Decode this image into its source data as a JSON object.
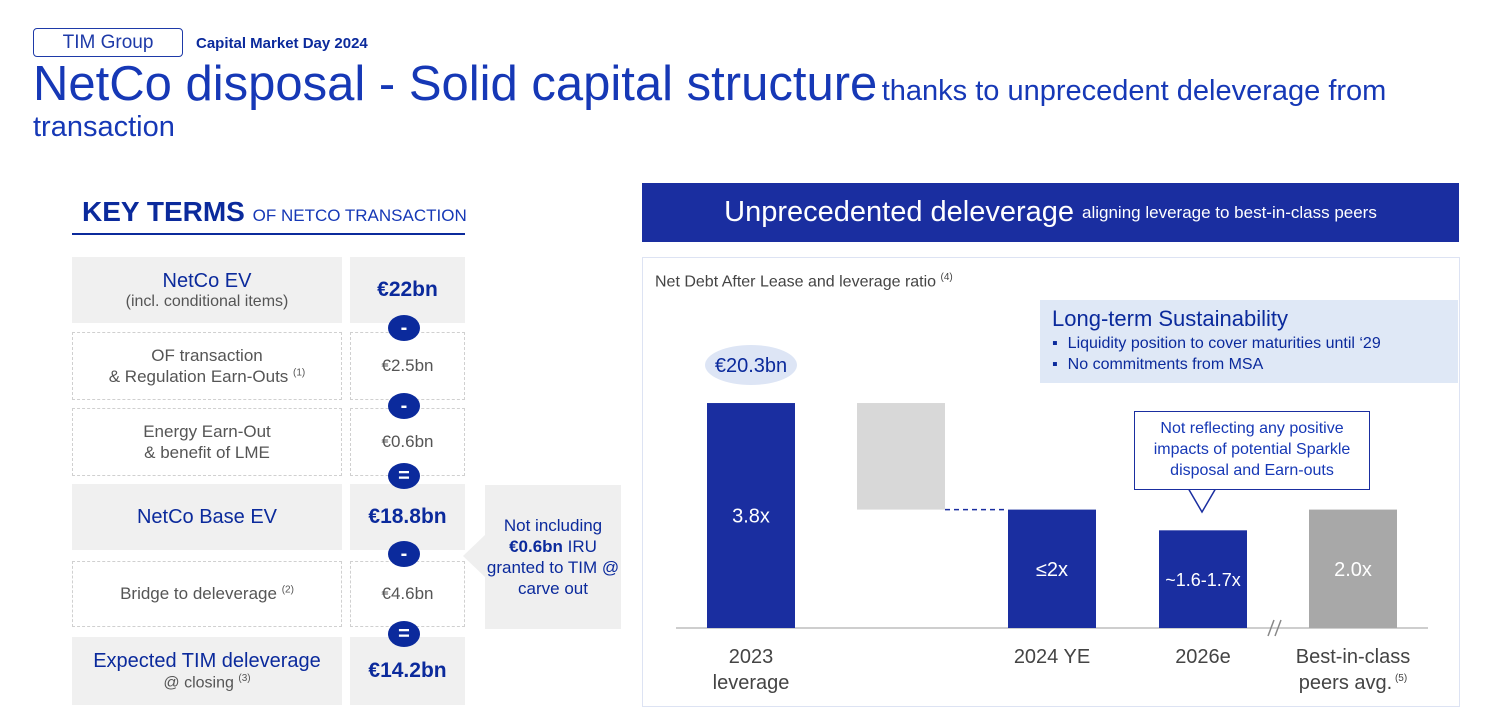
{
  "header": {
    "tag": "TIM Group",
    "event": "Capital Market Day 2024",
    "title_main": "NetCo disposal - Solid capital structure",
    "title_sub": "thanks to unprecedent deleverage from transaction"
  },
  "key_terms": {
    "title": "KEY TERMS",
    "subtitle": "OF NETCO TRANSACTION",
    "rows": [
      {
        "label": "NetCo EV",
        "sub": "(incl. conditional items)",
        "value": "€22bn"
      },
      {
        "label": "OF transaction & Regulation Earn-Outs",
        "note": "(1)",
        "value": "€2.5bn"
      },
      {
        "label": "Energy Earn-Out & benefit of LME",
        "value": "€0.6bn"
      },
      {
        "label": "NetCo Base EV",
        "value": "€18.8bn"
      },
      {
        "label": "Bridge to deleverage",
        "note": "(2)",
        "value": "€4.6bn"
      },
      {
        "label": "Expected TIM deleverage",
        "sub": "@ closing",
        "note": "(3)",
        "value": "€14.2bn"
      }
    ],
    "operators": [
      "-",
      "-",
      "=",
      "-",
      "="
    ]
  },
  "side_note": {
    "text_pre": "Not including",
    "bold": "€0.6bn",
    "text_post": "IRU granted to TIM @ carve out"
  },
  "banner": {
    "title": "Unprecedented deleverage",
    "subtitle": "aligning leverage to best-in-class peers"
  },
  "chart_label": {
    "text": "Net Debt After Lease and leverage ratio",
    "note": "(4)"
  },
  "sustainability": {
    "title": "Long-term Sustainability",
    "bullets": [
      "Liquidity position to cover maturities until ‘29",
      "No commitments from MSA"
    ]
  },
  "callout": "Not reflecting any positive impacts of potential Sparkle disposal and Earn-outs",
  "colors": {
    "navy": "#1a2ea0",
    "light_grey": "#d8d8d8",
    "peer_grey": "#a8a8a8"
  },
  "chart_data": {
    "type": "bar",
    "subtype": "waterfall",
    "categories": [
      "2023 leverage",
      "",
      "2024 YE",
      "2026e",
      "Best-in-class peers avg."
    ],
    "values": [
      3.8,
      -1.8,
      2.0,
      1.65,
      2.0
    ],
    "labels": [
      "3.8x",
      "",
      "≤2x",
      "~1.6-1.7x",
      "2.0x"
    ],
    "top_label": "€20.3bn",
    "peer_note": "(5)",
    "axis_break_before_last": true
  }
}
